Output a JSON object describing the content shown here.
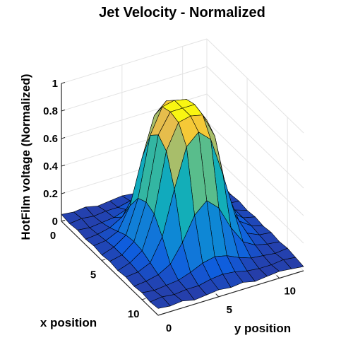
{
  "chart_data": {
    "type": "surface",
    "title": "Jet Velocity - Normalized",
    "xlabel": "x position",
    "ylabel": "y position",
    "zlabel": "HotFilm voltage (Normalized)",
    "x_ticks": [
      "0",
      "5",
      "10"
    ],
    "y_ticks": [
      "0",
      "5",
      "10"
    ],
    "z_ticks": [
      "0",
      "0.2",
      "0.4",
      "0.6",
      "0.8",
      "1"
    ],
    "xlim": [
      0,
      12
    ],
    "ylim": [
      0,
      12
    ],
    "zlim": [
      0,
      1
    ],
    "grid": true,
    "colormap": "parula",
    "surface": {
      "x": [
        0,
        1,
        2,
        3,
        4,
        5,
        6,
        7,
        8,
        9,
        10,
        11,
        12
      ],
      "y": [
        0,
        1,
        2,
        3,
        4,
        5,
        6,
        7,
        8,
        9,
        10,
        11,
        12
      ],
      "z": [
        [
          0.05,
          0.04,
          0.05,
          0.03,
          0.04,
          0.05,
          0.04,
          0.05,
          0.03,
          0.04,
          0.05,
          0.04,
          0.03
        ],
        [
          0.04,
          0.05,
          0.04,
          0.05,
          0.05,
          0.07,
          0.08,
          0.07,
          0.05,
          0.04,
          0.04,
          0.05,
          0.04
        ],
        [
          0.05,
          0.04,
          0.05,
          0.06,
          0.09,
          0.13,
          0.15,
          0.13,
          0.09,
          0.06,
          0.05,
          0.04,
          0.05
        ],
        [
          0.04,
          0.05,
          0.07,
          0.12,
          0.25,
          0.42,
          0.5,
          0.42,
          0.25,
          0.12,
          0.07,
          0.05,
          0.04
        ],
        [
          0.05,
          0.06,
          0.1,
          0.26,
          0.58,
          0.86,
          0.94,
          0.86,
          0.58,
          0.26,
          0.1,
          0.06,
          0.05
        ],
        [
          0.04,
          0.07,
          0.13,
          0.37,
          0.8,
          0.98,
          1.0,
          0.98,
          0.8,
          0.37,
          0.13,
          0.07,
          0.04
        ],
        [
          0.05,
          0.07,
          0.14,
          0.4,
          0.86,
          1.0,
          1.0,
          1.0,
          0.86,
          0.4,
          0.14,
          0.07,
          0.05
        ],
        [
          0.04,
          0.07,
          0.13,
          0.37,
          0.8,
          0.98,
          1.0,
          0.98,
          0.8,
          0.37,
          0.13,
          0.07,
          0.04
        ],
        [
          0.05,
          0.06,
          0.1,
          0.26,
          0.58,
          0.86,
          0.94,
          0.86,
          0.58,
          0.26,
          0.1,
          0.06,
          0.05
        ],
        [
          0.04,
          0.05,
          0.07,
          0.12,
          0.25,
          0.42,
          0.5,
          0.42,
          0.25,
          0.12,
          0.07,
          0.05,
          0.04
        ],
        [
          0.05,
          0.04,
          0.05,
          0.06,
          0.09,
          0.13,
          0.15,
          0.13,
          0.09,
          0.06,
          0.05,
          0.04,
          0.05
        ],
        [
          0.04,
          0.05,
          0.04,
          0.05,
          0.05,
          0.07,
          0.08,
          0.07,
          0.05,
          0.04,
          0.04,
          0.05,
          0.04
        ],
        [
          0.05,
          0.04,
          0.05,
          0.03,
          0.04,
          0.05,
          0.04,
          0.05,
          0.03,
          0.04,
          0.05,
          0.04,
          0.03
        ]
      ]
    }
  }
}
